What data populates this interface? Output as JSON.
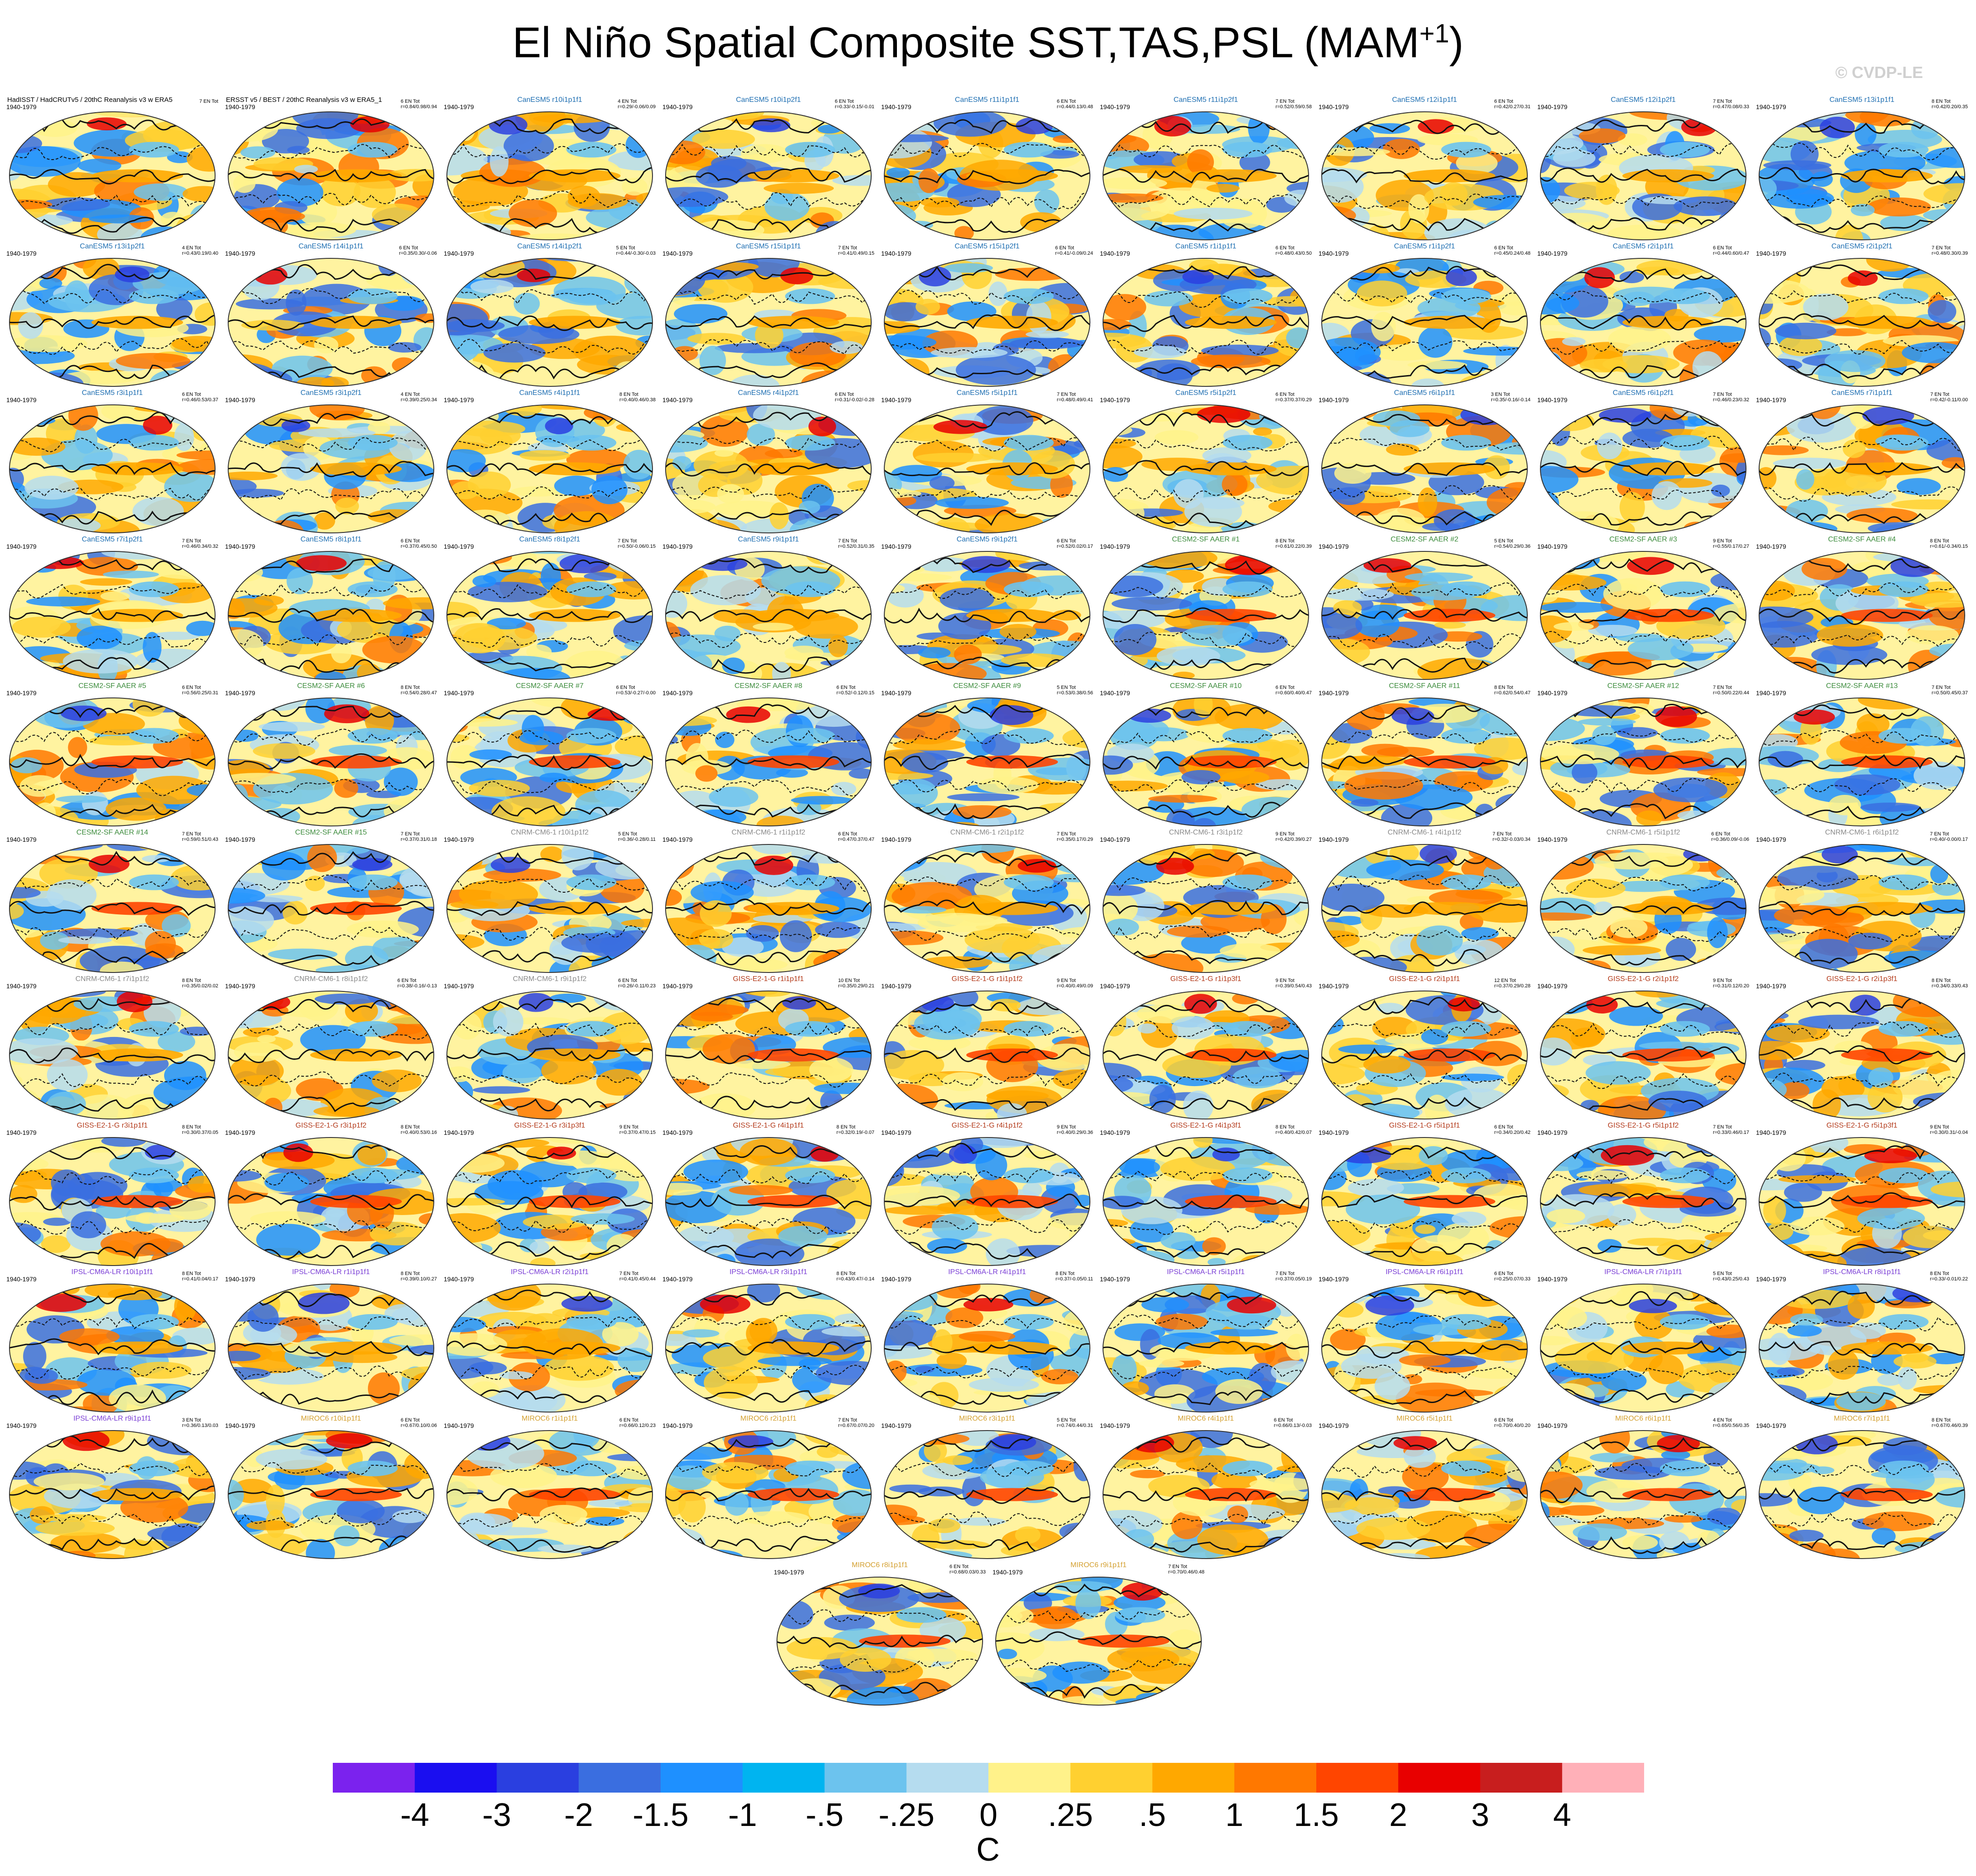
{
  "title": {
    "main": "El Niño Spatial Composite SST,TAS,PSL (MAM",
    "superscript": "+1",
    "close": ")"
  },
  "watermark": "© CVDP-LE",
  "years": "1940-1979",
  "stat_label": "EN Tot",
  "colors": {
    "obs": "#000000",
    "CanESM5": "#1f6fb2",
    "CESM2-SF AAER": "#3d8c3d",
    "CNRM-CM6-1": "#8a8a8a",
    "GISS-E2-1-G": "#b33a1a",
    "IPSL-CM6A-LR": "#7b3fd6",
    "MIROC6": "#d4a030"
  },
  "chart_data": {
    "type": "heatmap",
    "description_units": "C",
    "colorbar": {
      "ticks": [
        "-4",
        "-3",
        "-2",
        "-1.5",
        "-1",
        "-.5",
        "-.25",
        "0",
        ".25",
        ".5",
        "1",
        "1.5",
        "2",
        "3",
        "4"
      ],
      "colors": [
        "#7b22ee",
        "#1a0ef0",
        "#2a3fe0",
        "#3a6ee0",
        "#1e90ff",
        "#00b4f0",
        "#6cc3ee",
        "#b5dcef",
        "#fff28a",
        "#ffd030",
        "#ffa800",
        "#ff7800",
        "#ff4500",
        "#e80000",
        "#c81e1e",
        "#ffb0b8"
      ],
      "units": "C"
    },
    "panels": [
      {
        "title": "HadISST / HadCRUTv5 / 20thC Reanalysis v3 w ERA5",
        "group": "obs",
        "n": "7",
        "stat": ""
      },
      {
        "title": "ERSST v5 / BEST / 20thC Reanalysis v3 w ERA5_1",
        "group": "obs",
        "n": "6",
        "stat": "r=0.84/0.98/0.94"
      },
      {
        "title": "CanESM5 r10i1p1f1",
        "group": "CanESM5",
        "n": "4",
        "stat": "r=0.29/-0.06/0.09"
      },
      {
        "title": "CanESM5 r10i1p2f1",
        "group": "CanESM5",
        "n": "6",
        "stat": "r=0.33/-0.15/-0.01"
      },
      {
        "title": "CanESM5 r11i1p1f1",
        "group": "CanESM5",
        "n": "6",
        "stat": "r=0.44/0.13/0.48"
      },
      {
        "title": "CanESM5 r11i1p2f1",
        "group": "CanESM5",
        "n": "7",
        "stat": "r=0.52/0.59/0.58"
      },
      {
        "title": "CanESM5 r12i1p1f1",
        "group": "CanESM5",
        "n": "6",
        "stat": "r=0.42/0.27/0.31"
      },
      {
        "title": "CanESM5 r12i1p2f1",
        "group": "CanESM5",
        "n": "7",
        "stat": "r=0.47/0.08/0.33"
      },
      {
        "title": "CanESM5 r13i1p1f1",
        "group": "CanESM5",
        "n": "8",
        "stat": "r=0.42/0.20/0.35"
      },
      {
        "title": "CanESM5 r13i1p2f1",
        "group": "CanESM5",
        "n": "4",
        "stat": "r=0.43/0.19/0.40"
      },
      {
        "title": "CanESM5 r14i1p1f1",
        "group": "CanESM5",
        "n": "6",
        "stat": "r=0.35/0.30/-0.06"
      },
      {
        "title": "CanESM5 r14i1p2f1",
        "group": "CanESM5",
        "n": "5",
        "stat": "r=0.44/-0.30/-0.03"
      },
      {
        "title": "CanESM5 r15i1p1f1",
        "group": "CanESM5",
        "n": "7",
        "stat": "r=0.41/0.49/0.15"
      },
      {
        "title": "CanESM5 r15i1p2f1",
        "group": "CanESM5",
        "n": "6",
        "stat": "r=0.41/-0.09/0.24"
      },
      {
        "title": "CanESM5 r1i1p1f1",
        "group": "CanESM5",
        "n": "6",
        "stat": "r=0.48/0.43/0.50"
      },
      {
        "title": "CanESM5 r1i1p2f1",
        "group": "CanESM5",
        "n": "6",
        "stat": "r=0.45/0.24/0.48"
      },
      {
        "title": "CanESM5 r2i1p1f1",
        "group": "CanESM5",
        "n": "6",
        "stat": "r=0.44/0.60/0.47"
      },
      {
        "title": "CanESM5 r2i1p2f1",
        "group": "CanESM5",
        "n": "7",
        "stat": "r=0.48/0.30/0.39"
      },
      {
        "title": "CanESM5 r3i1p1f1",
        "group": "CanESM5",
        "n": "6",
        "stat": "r=0.46/0.53/0.37"
      },
      {
        "title": "CanESM5 r3i1p2f1",
        "group": "CanESM5",
        "n": "4",
        "stat": "r=0.39/0.25/0.34"
      },
      {
        "title": "CanESM5 r4i1p1f1",
        "group": "CanESM5",
        "n": "8",
        "stat": "r=0.40/0.46/0.38"
      },
      {
        "title": "CanESM5 r4i1p2f1",
        "group": "CanESM5",
        "n": "6",
        "stat": "r=0.31/-0.02/-0.28"
      },
      {
        "title": "CanESM5 r5i1p1f1",
        "group": "CanESM5",
        "n": "7",
        "stat": "r=0.48/0.49/0.41"
      },
      {
        "title": "CanESM5 r5i1p2f1",
        "group": "CanESM5",
        "n": "6",
        "stat": "r=0.37/0.37/0.29"
      },
      {
        "title": "CanESM5 r6i1p1f1",
        "group": "CanESM5",
        "n": "3",
        "stat": "r=0.35/-0.16/-0.14"
      },
      {
        "title": "CanESM5 r6i1p2f1",
        "group": "CanESM5",
        "n": "7",
        "stat": "r=0.46/0.23/0.32"
      },
      {
        "title": "CanESM5 r7i1p1f1",
        "group": "CanESM5",
        "n": "7",
        "stat": "r=0.42/-0.11/0.00"
      },
      {
        "title": "CanESM5 r7i1p2f1",
        "group": "CanESM5",
        "n": "7",
        "stat": "r=0.46/0.34/0.32"
      },
      {
        "title": "CanESM5 r8i1p1f1",
        "group": "CanESM5",
        "n": "6",
        "stat": "r=0.37/0.45/0.50"
      },
      {
        "title": "CanESM5 r8i1p2f1",
        "group": "CanESM5",
        "n": "7",
        "stat": "r=0.50/-0.06/0.15"
      },
      {
        "title": "CanESM5 r9i1p1f1",
        "group": "CanESM5",
        "n": "7",
        "stat": "r=0.52/0.31/0.35"
      },
      {
        "title": "CanESM5 r9i1p2f1",
        "group": "CanESM5",
        "n": "6",
        "stat": "r=0.52/0.02/0.17"
      },
      {
        "title": "CESM2-SF AAER #1",
        "group": "CESM2-SF AAER",
        "n": "8",
        "stat": "r=0.61/0.22/0.39"
      },
      {
        "title": "CESM2-SF AAER #2",
        "group": "CESM2-SF AAER",
        "n": "5",
        "stat": "r=0.54/0.29/0.36"
      },
      {
        "title": "CESM2-SF AAER #3",
        "group": "CESM2-SF AAER",
        "n": "9",
        "stat": "r=0.55/0.17/0.27"
      },
      {
        "title": "CESM2-SF AAER #4",
        "group": "CESM2-SF AAER",
        "n": "8",
        "stat": "r=0.61/-0.34/0.15"
      },
      {
        "title": "CESM2-SF AAER #5",
        "group": "CESM2-SF AAER",
        "n": "6",
        "stat": "r=0.56/0.25/0.31"
      },
      {
        "title": "CESM2-SF AAER #6",
        "group": "CESM2-SF AAER",
        "n": "8",
        "stat": "r=0.54/0.28/0.47"
      },
      {
        "title": "CESM2-SF AAER #7",
        "group": "CESM2-SF AAER",
        "n": "6",
        "stat": "r=0.53/-0.27/-0.00"
      },
      {
        "title": "CESM2-SF AAER #8",
        "group": "CESM2-SF AAER",
        "n": "6",
        "stat": "r=0.52/-0.12/0.15"
      },
      {
        "title": "CESM2-SF AAER #9",
        "group": "CESM2-SF AAER",
        "n": "5",
        "stat": "r=0.53/0.38/0.56"
      },
      {
        "title": "CESM2-SF AAER #10",
        "group": "CESM2-SF AAER",
        "n": "6",
        "stat": "r=0.60/0.40/0.47"
      },
      {
        "title": "CESM2-SF AAER #11",
        "group": "CESM2-SF AAER",
        "n": "8",
        "stat": "r=0.62/0.54/0.47"
      },
      {
        "title": "CESM2-SF AAER #12",
        "group": "CESM2-SF AAER",
        "n": "7",
        "stat": "r=0.50/0.22/0.44"
      },
      {
        "title": "CESM2-SF AAER #13",
        "group": "CESM2-SF AAER",
        "n": "7",
        "stat": "r=0.50/0.45/0.37"
      },
      {
        "title": "CESM2-SF AAER #14",
        "group": "CESM2-SF AAER",
        "n": "7",
        "stat": "r=0.59/0.51/0.43"
      },
      {
        "title": "CESM2-SF AAER #15",
        "group": "CESM2-SF AAER",
        "n": "7",
        "stat": "r=0.37/0.31/0.18"
      },
      {
        "title": "CNRM-CM6-1 r10i1p1f2",
        "group": "CNRM-CM6-1",
        "n": "5",
        "stat": "r=0.36/-0.28/0.11"
      },
      {
        "title": "CNRM-CM6-1 r1i1p1f2",
        "group": "CNRM-CM6-1",
        "n": "6",
        "stat": "r=0.47/0.37/0.47"
      },
      {
        "title": "CNRM-CM6-1 r2i1p1f2",
        "group": "CNRM-CM6-1",
        "n": "7",
        "stat": "r=0.35/0.17/0.29"
      },
      {
        "title": "CNRM-CM6-1 r3i1p1f2",
        "group": "CNRM-CM6-1",
        "n": "9",
        "stat": "r=0.42/0.39/0.27"
      },
      {
        "title": "CNRM-CM6-1 r4i1p1f2",
        "group": "CNRM-CM6-1",
        "n": "7",
        "stat": "r=0.32/-0.03/0.34"
      },
      {
        "title": "CNRM-CM6-1 r5i1p1f2",
        "group": "CNRM-CM6-1",
        "n": "6",
        "stat": "r=0.36/0.09/-0.06"
      },
      {
        "title": "CNRM-CM6-1 r6i1p1f2",
        "group": "CNRM-CM6-1",
        "n": "7",
        "stat": "r=0.40/-0.00/0.17"
      },
      {
        "title": "CNRM-CM6-1 r7i1p1f2",
        "group": "CNRM-CM6-1",
        "n": "8",
        "stat": "r=0.35/0.02/0.02"
      },
      {
        "title": "CNRM-CM6-1 r8i1p1f2",
        "group": "CNRM-CM6-1",
        "n": "6",
        "stat": "r=0.38/-0.16/-0.13"
      },
      {
        "title": "CNRM-CM6-1 r9i1p1f2",
        "group": "CNRM-CM6-1",
        "n": "6",
        "stat": "r=0.26/-0.11/0.23"
      },
      {
        "title": "GISS-E2-1-G r1i1p1f1",
        "group": "GISS-E2-1-G",
        "n": "10",
        "stat": "r=0.35/0.29/0.21"
      },
      {
        "title": "GISS-E2-1-G r1i1p1f2",
        "group": "GISS-E2-1-G",
        "n": "9",
        "stat": "r=0.40/0.49/0.09"
      },
      {
        "title": "GISS-E2-1-G r1i1p3f1",
        "group": "GISS-E2-1-G",
        "n": "9",
        "stat": "r=0.39/0.54/0.43"
      },
      {
        "title": "GISS-E2-1-G r2i1p1f1",
        "group": "GISS-E2-1-G",
        "n": "12",
        "stat": "r=0.37/0.29/0.28"
      },
      {
        "title": "GISS-E2-1-G r2i1p1f2",
        "group": "GISS-E2-1-G",
        "n": "9",
        "stat": "r=0.31/0.12/0.20"
      },
      {
        "title": "GISS-E2-1-G r2i1p3f1",
        "group": "GISS-E2-1-G",
        "n": "8",
        "stat": "r=0.34/0.33/0.43"
      },
      {
        "title": "GISS-E2-1-G r3i1p1f1",
        "group": "GISS-E2-1-G",
        "n": "8",
        "stat": "r=0.30/0.37/0.05"
      },
      {
        "title": "GISS-E2-1-G r3i1p1f2",
        "group": "GISS-E2-1-G",
        "n": "8",
        "stat": "r=0.40/0.53/0.16"
      },
      {
        "title": "GISS-E2-1-G r3i1p3f1",
        "group": "GISS-E2-1-G",
        "n": "9",
        "stat": "r=0.37/0.47/0.15"
      },
      {
        "title": "GISS-E2-1-G r4i1p1f1",
        "group": "GISS-E2-1-G",
        "n": "8",
        "stat": "r=0.32/0.19/-0.07"
      },
      {
        "title": "GISS-E2-1-G r4i1p1f2",
        "group": "GISS-E2-1-G",
        "n": "9",
        "stat": "r=0.40/0.29/0.36"
      },
      {
        "title": "GISS-E2-1-G r4i1p3f1",
        "group": "GISS-E2-1-G",
        "n": "8",
        "stat": "r=0.40/0.42/0.07"
      },
      {
        "title": "GISS-E2-1-G r5i1p1f1",
        "group": "GISS-E2-1-G",
        "n": "6",
        "stat": "r=0.34/0.20/0.42"
      },
      {
        "title": "GISS-E2-1-G r5i1p1f2",
        "group": "GISS-E2-1-G",
        "n": "7",
        "stat": "r=0.33/0.46/0.17"
      },
      {
        "title": "GISS-E2-1-G r5i1p3f1",
        "group": "GISS-E2-1-G",
        "n": "9",
        "stat": "r=0.30/0.31/-0.04"
      },
      {
        "title": "IPSL-CM6A-LR r10i1p1f1",
        "group": "IPSL-CM6A-LR",
        "n": "8",
        "stat": "r=0.41/0.04/0.17"
      },
      {
        "title": "IPSL-CM6A-LR r1i1p1f1",
        "group": "IPSL-CM6A-LR",
        "n": "8",
        "stat": "r=0.39/0.10/0.27"
      },
      {
        "title": "IPSL-CM6A-LR r2i1p1f1",
        "group": "IPSL-CM6A-LR",
        "n": "7",
        "stat": "r=0.41/0.45/0.44"
      },
      {
        "title": "IPSL-CM6A-LR r3i1p1f1",
        "group": "IPSL-CM6A-LR",
        "n": "8",
        "stat": "r=0.43/0.47/-0.14"
      },
      {
        "title": "IPSL-CM6A-LR r4i1p1f1",
        "group": "IPSL-CM6A-LR",
        "n": "8",
        "stat": "r=0.37/-0.05/0.11"
      },
      {
        "title": "IPSL-CM6A-LR r5i1p1f1",
        "group": "IPSL-CM6A-LR",
        "n": "7",
        "stat": "r=0.37/0.05/0.19"
      },
      {
        "title": "IPSL-CM6A-LR r6i1p1f1",
        "group": "IPSL-CM6A-LR",
        "n": "6",
        "stat": "r=0.25/0.07/0.33"
      },
      {
        "title": "IPSL-CM6A-LR r7i1p1f1",
        "group": "IPSL-CM6A-LR",
        "n": "5",
        "stat": "r=0.43/0.25/0.43"
      },
      {
        "title": "IPSL-CM6A-LR r8i1p1f1",
        "group": "IPSL-CM6A-LR",
        "n": "8",
        "stat": "r=0.33/-0.01/0.22"
      },
      {
        "title": "IPSL-CM6A-LR r9i1p1f1",
        "group": "IPSL-CM6A-LR",
        "n": "3",
        "stat": "r=0.36/0.13/0.03"
      },
      {
        "title": "MIROC6 r10i1p1f1",
        "group": "MIROC6",
        "n": "6",
        "stat": "r=0.67/0.10/0.06"
      },
      {
        "title": "MIROC6 r1i1p1f1",
        "group": "MIROC6",
        "n": "6",
        "stat": "r=0.66/0.12/0.23"
      },
      {
        "title": "MIROC6 r2i1p1f1",
        "group": "MIROC6",
        "n": "7",
        "stat": "r=0.67/0.07/0.20"
      },
      {
        "title": "MIROC6 r3i1p1f1",
        "group": "MIROC6",
        "n": "5",
        "stat": "r=0.74/0.44/0.31"
      },
      {
        "title": "MIROC6 r4i1p1f1",
        "group": "MIROC6",
        "n": "6",
        "stat": "r=0.66/0.13/-0.03"
      },
      {
        "title": "MIROC6 r5i1p1f1",
        "group": "MIROC6",
        "n": "6",
        "stat": "r=0.70/0.40/0.20"
      },
      {
        "title": "MIROC6 r6i1p1f1",
        "group": "MIROC6",
        "n": "4",
        "stat": "r=0.65/0.56/0.35"
      },
      {
        "title": "MIROC6 r7i1p1f1",
        "group": "MIROC6",
        "n": "8",
        "stat": "r=0.67/0.46/0.39"
      },
      {
        "title": "MIROC6 r8i1p1f1",
        "group": "MIROC6",
        "n": "6",
        "stat": "r=0.68/0.03/0.33"
      },
      {
        "title": "MIROC6 r9i1p1f1",
        "group": "MIROC6",
        "n": "7",
        "stat": "r=0.70/0.46/0.48"
      }
    ]
  }
}
